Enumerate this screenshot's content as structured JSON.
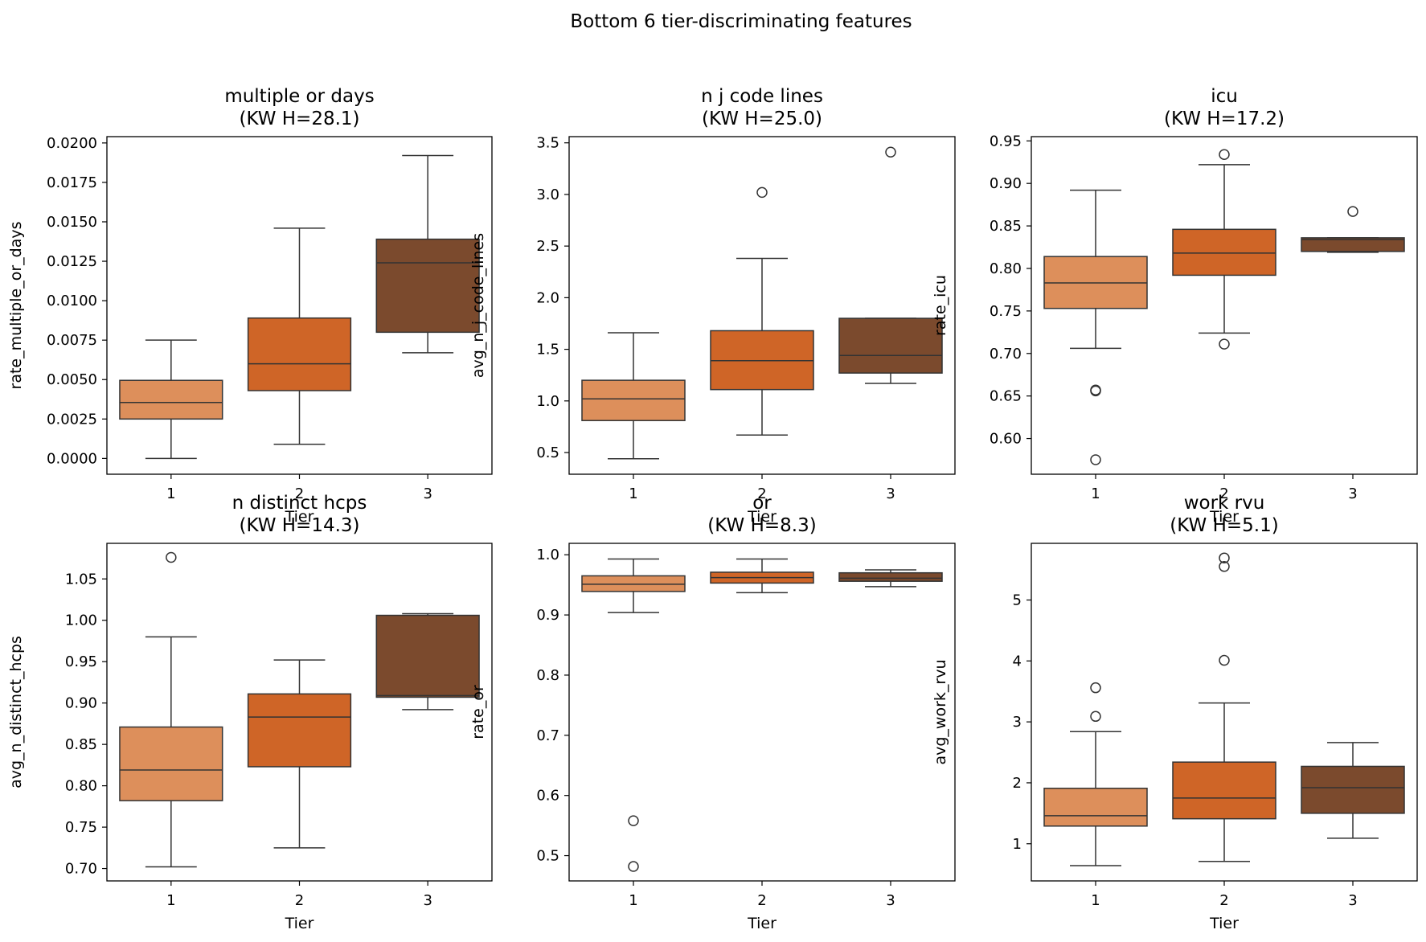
{
  "suptitle": "Bottom 6 tier-discriminating features",
  "colors": {
    "tier1": "#DD8F5B",
    "tier2": "#CF6527",
    "tier3": "#7B4A2D",
    "line": "#333333"
  },
  "chart_data": [
    {
      "type": "box",
      "title": "multiple or days",
      "subtitle": "(KW H=28.1)",
      "xlabel": "Tier",
      "ylabel": "rate_multiple_or_days",
      "categories": [
        "1",
        "2",
        "3"
      ],
      "ylim": [
        -0.001,
        0.0204
      ],
      "ticks": [
        0,
        0.0025,
        0.005,
        0.0075,
        0.01,
        0.0125,
        0.015,
        0.0175,
        0.02
      ],
      "tick_labels": [
        "0.0000",
        "0.0025",
        "0.0050",
        "0.0075",
        "0.0100",
        "0.0125",
        "0.0150",
        "0.0175",
        "0.0200"
      ],
      "boxes": [
        {
          "tier": "1",
          "whislo": 0.0,
          "q1": 0.0025,
          "median": 0.00355,
          "q3": 0.00495,
          "whishi": 0.0075,
          "fliers": []
        },
        {
          "tier": "2",
          "whislo": 0.0009,
          "q1": 0.0043,
          "median": 0.006,
          "q3": 0.0089,
          "whishi": 0.0146,
          "fliers": []
        },
        {
          "tier": "3",
          "whislo": 0.0067,
          "q1": 0.008,
          "median": 0.0124,
          "q3": 0.0139,
          "whishi": 0.0192,
          "fliers": []
        }
      ]
    },
    {
      "type": "box",
      "title": "n j code lines",
      "subtitle": "(KW H=25.0)",
      "xlabel": "Tier",
      "ylabel": "avg_n_j_code_lines",
      "categories": [
        "1",
        "2",
        "3"
      ],
      "ylim": [
        0.29,
        3.56
      ],
      "ticks": [
        0.5,
        1.0,
        1.5,
        2.0,
        2.5,
        3.0,
        3.5
      ],
      "tick_labels": [
        "0.5",
        "1.0",
        "1.5",
        "2.0",
        "2.5",
        "3.0",
        "3.5"
      ],
      "boxes": [
        {
          "tier": "1",
          "whislo": 0.44,
          "q1": 0.81,
          "median": 1.02,
          "q3": 1.2,
          "whishi": 1.66,
          "fliers": []
        },
        {
          "tier": "2",
          "whislo": 0.67,
          "q1": 1.11,
          "median": 1.39,
          "q3": 1.68,
          "whishi": 2.38,
          "fliers": [
            3.02
          ]
        },
        {
          "tier": "3",
          "whislo": 1.17,
          "q1": 1.27,
          "median": 1.44,
          "q3": 1.8,
          "whishi": 1.8,
          "fliers": [
            3.41
          ]
        }
      ]
    },
    {
      "type": "box",
      "title": "icu",
      "subtitle": "(KW H=17.2)",
      "xlabel": "Tier",
      "ylabel": "rate_icu",
      "categories": [
        "1",
        "2",
        "3"
      ],
      "ylim": [
        0.558,
        0.955
      ],
      "ticks": [
        0.6,
        0.65,
        0.7,
        0.75,
        0.8,
        0.85,
        0.9,
        0.95
      ],
      "tick_labels": [
        "0.60",
        "0.65",
        "0.70",
        "0.75",
        "0.80",
        "0.85",
        "0.90",
        "0.95"
      ],
      "boxes": [
        {
          "tier": "1",
          "whislo": 0.706,
          "q1": 0.753,
          "median": 0.783,
          "q3": 0.814,
          "whishi": 0.892,
          "fliers": [
            0.657,
            0.656,
            0.575
          ]
        },
        {
          "tier": "2",
          "whislo": 0.724,
          "q1": 0.792,
          "median": 0.818,
          "q3": 0.846,
          "whishi": 0.922,
          "fliers": [
            0.934,
            0.711
          ]
        },
        {
          "tier": "3",
          "whislo": 0.819,
          "q1": 0.82,
          "median": 0.834,
          "q3": 0.836,
          "whishi": 0.836,
          "fliers": [
            0.867
          ]
        }
      ]
    },
    {
      "type": "box",
      "title": "n distinct hcps",
      "subtitle": "(KW H=14.3)",
      "xlabel": "Tier",
      "ylabel": "avg_n_distinct_hcps",
      "categories": [
        "1",
        "2",
        "3"
      ],
      "ylim": [
        0.685,
        1.093
      ],
      "ticks": [
        0.7,
        0.75,
        0.8,
        0.85,
        0.9,
        0.95,
        1.0,
        1.05
      ],
      "tick_labels": [
        "0.70",
        "0.75",
        "0.80",
        "0.85",
        "0.90",
        "0.95",
        "1.00",
        "1.05"
      ],
      "boxes": [
        {
          "tier": "1",
          "whislo": 0.702,
          "q1": 0.782,
          "median": 0.819,
          "q3": 0.871,
          "whishi": 0.98,
          "fliers": [
            1.076
          ]
        },
        {
          "tier": "2",
          "whislo": 0.725,
          "q1": 0.823,
          "median": 0.883,
          "q3": 0.911,
          "whishi": 0.952,
          "fliers": []
        },
        {
          "tier": "3",
          "whislo": 0.892,
          "q1": 0.907,
          "median": 0.909,
          "q3": 1.006,
          "whishi": 1.008,
          "fliers": []
        }
      ]
    },
    {
      "type": "box",
      "title": "or",
      "subtitle": "(KW H=8.3)",
      "xlabel": "Tier",
      "ylabel": "rate_or",
      "categories": [
        "1",
        "2",
        "3"
      ],
      "ylim": [
        0.458,
        1.019
      ],
      "ticks": [
        0.5,
        0.6,
        0.7,
        0.8,
        0.9,
        1.0
      ],
      "tick_labels": [
        "0.5",
        "0.6",
        "0.7",
        "0.8",
        "0.9",
        "1.0"
      ],
      "boxes": [
        {
          "tier": "1",
          "whislo": 0.904,
          "q1": 0.939,
          "median": 0.951,
          "q3": 0.965,
          "whishi": 0.993,
          "fliers": [
            0.558,
            0.482
          ]
        },
        {
          "tier": "2",
          "whislo": 0.937,
          "q1": 0.953,
          "median": 0.962,
          "q3": 0.971,
          "whishi": 0.993,
          "fliers": []
        },
        {
          "tier": "3",
          "whislo": 0.947,
          "q1": 0.956,
          "median": 0.961,
          "q3": 0.97,
          "whishi": 0.975,
          "fliers": []
        }
      ]
    },
    {
      "type": "box",
      "title": "work rvu",
      "subtitle": "(KW H=5.1)",
      "xlabel": "Tier",
      "ylabel": "avg_work_rvu",
      "categories": [
        "1",
        "2",
        "3"
      ],
      "ylim": [
        0.39,
        5.93
      ],
      "ticks": [
        1,
        2,
        3,
        4,
        5
      ],
      "tick_labels": [
        "1",
        "2",
        "3",
        "4",
        "5"
      ],
      "boxes": [
        {
          "tier": "1",
          "whislo": 0.64,
          "q1": 1.29,
          "median": 1.46,
          "q3": 1.91,
          "whishi": 2.84,
          "fliers": [
            3.56,
            3.09
          ]
        },
        {
          "tier": "2",
          "whislo": 0.71,
          "q1": 1.41,
          "median": 1.75,
          "q3": 2.34,
          "whishi": 3.31,
          "fliers": [
            5.69,
            5.55,
            4.01
          ]
        },
        {
          "tier": "3",
          "whislo": 1.09,
          "q1": 1.5,
          "median": 1.92,
          "q3": 2.27,
          "whishi": 2.66,
          "fliers": []
        }
      ]
    }
  ]
}
